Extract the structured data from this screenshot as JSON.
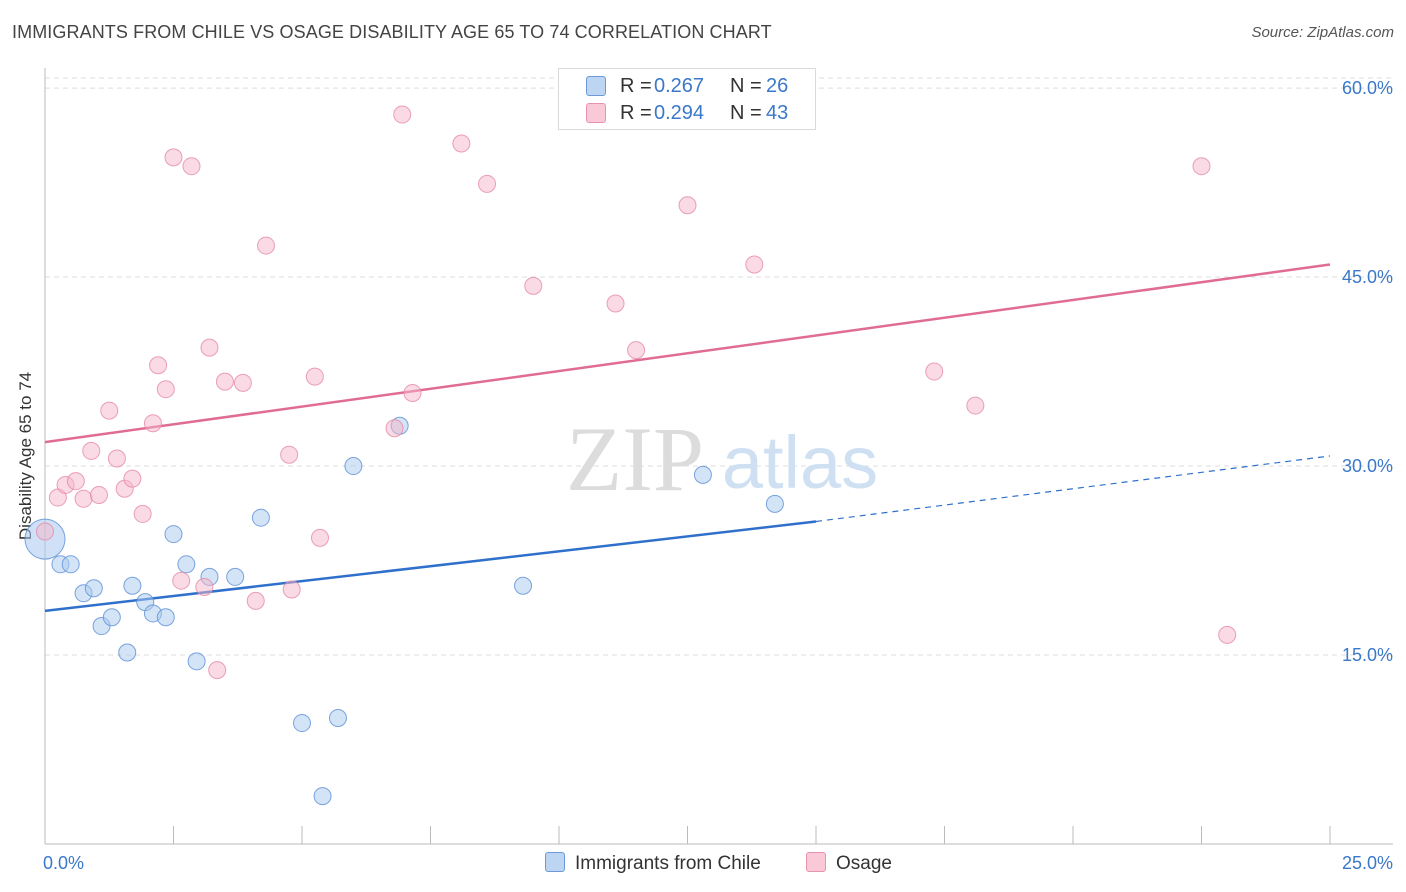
{
  "title": "IMMIGRANTS FROM CHILE VS OSAGE DISABILITY AGE 65 TO 74 CORRELATION CHART",
  "source": "Source: ZipAtlas.com",
  "watermark": {
    "zip": "ZIP",
    "atlas": "atlas"
  },
  "legend_stats": [
    {
      "name": "Immigrants from Chile",
      "r_label": "R =",
      "r": "0.267",
      "n_label": "N =",
      "n": "26"
    },
    {
      "name": "Osage",
      "r_label": "R =",
      "r": "0.294",
      "n_label": "N =",
      "n": "43"
    }
  ],
  "colors": {
    "blue_fill": "#a9c9f0",
    "blue_edge": "#5b8fd6",
    "blue_line": "#2f70cc",
    "pink_fill": "#f6b6ca",
    "pink_edge": "#e58aa7",
    "pink_line": "#e06c94",
    "tick_text": "#3a78c9",
    "grid": "#dddddd",
    "axis": "#bbbbbb"
  },
  "chart_data": {
    "type": "scatter",
    "title": "IMMIGRANTS FROM CHILE VS OSAGE DISABILITY AGE 65 TO 74 CORRELATION CHART",
    "xlabel": "",
    "ylabel": "Disability Age 65 to 74",
    "xlim": [
      0,
      25
    ],
    "ylim": [
      0,
      60.8
    ],
    "x_tick_labels": [
      "0.0%",
      "25.0%"
    ],
    "y_ticks": [
      15,
      30,
      45,
      60
    ],
    "y_tick_labels": [
      "15.0%",
      "30.0%",
      "45.0%",
      "60.0%"
    ],
    "grid": true,
    "series": [
      {
        "name": "Immigrants from Chile",
        "color": "blue",
        "points": [
          {
            "x": 0.0,
            "y": 24.2,
            "big": true
          },
          {
            "x": 0.3,
            "y": 22.2
          },
          {
            "x": 0.5,
            "y": 22.2
          },
          {
            "x": 0.75,
            "y": 19.9
          },
          {
            "x": 0.95,
            "y": 20.3
          },
          {
            "x": 1.1,
            "y": 17.3
          },
          {
            "x": 1.3,
            "y": 18.0
          },
          {
            "x": 1.6,
            "y": 15.2
          },
          {
            "x": 1.7,
            "y": 20.5
          },
          {
            "x": 1.95,
            "y": 19.2
          },
          {
            "x": 2.1,
            "y": 18.3
          },
          {
            "x": 2.35,
            "y": 18.0
          },
          {
            "x": 2.5,
            "y": 24.6
          },
          {
            "x": 2.75,
            "y": 22.2
          },
          {
            "x": 2.95,
            "y": 14.5
          },
          {
            "x": 3.2,
            "y": 21.2
          },
          {
            "x": 3.7,
            "y": 21.2
          },
          {
            "x": 4.2,
            "y": 25.9
          },
          {
            "x": 5.0,
            "y": 9.6
          },
          {
            "x": 5.4,
            "y": 3.8
          },
          {
            "x": 5.7,
            "y": 10.0
          },
          {
            "x": 6.0,
            "y": 30.0
          },
          {
            "x": 6.9,
            "y": 33.2
          },
          {
            "x": 9.3,
            "y": 20.5
          },
          {
            "x": 12.8,
            "y": 29.3
          },
          {
            "x": 14.2,
            "y": 27.0
          }
        ],
        "trend": {
          "x0": 0,
          "y0": 18.5,
          "x1": 15,
          "y1": 25.6,
          "dashed_to": 25,
          "dashed_y1": 30.8
        }
      },
      {
        "name": "Osage",
        "color": "pink",
        "points": [
          {
            "x": 0.0,
            "y": 24.8
          },
          {
            "x": 0.25,
            "y": 27.5
          },
          {
            "x": 0.4,
            "y": 28.5
          },
          {
            "x": 0.6,
            "y": 28.8
          },
          {
            "x": 0.75,
            "y": 27.4
          },
          {
            "x": 0.9,
            "y": 31.2
          },
          {
            "x": 1.05,
            "y": 27.7
          },
          {
            "x": 1.25,
            "y": 34.4
          },
          {
            "x": 1.4,
            "y": 30.6
          },
          {
            "x": 1.55,
            "y": 28.2
          },
          {
            "x": 1.7,
            "y": 29.0
          },
          {
            "x": 1.9,
            "y": 26.2
          },
          {
            "x": 2.1,
            "y": 33.4
          },
          {
            "x": 2.2,
            "y": 38.0
          },
          {
            "x": 2.35,
            "y": 36.1
          },
          {
            "x": 2.5,
            "y": 54.5
          },
          {
            "x": 2.65,
            "y": 20.9
          },
          {
            "x": 2.85,
            "y": 53.8
          },
          {
            "x": 3.1,
            "y": 20.4
          },
          {
            "x": 3.2,
            "y": 39.4
          },
          {
            "x": 3.35,
            "y": 13.8
          },
          {
            "x": 3.5,
            "y": 36.7
          },
          {
            "x": 3.85,
            "y": 36.6
          },
          {
            "x": 4.1,
            "y": 19.3
          },
          {
            "x": 4.3,
            "y": 47.5
          },
          {
            "x": 4.75,
            "y": 30.9
          },
          {
            "x": 4.8,
            "y": 20.2
          },
          {
            "x": 5.25,
            "y": 37.1
          },
          {
            "x": 5.35,
            "y": 24.3
          },
          {
            "x": 6.8,
            "y": 33.0
          },
          {
            "x": 6.95,
            "y": 57.9
          },
          {
            "x": 7.15,
            "y": 35.8
          },
          {
            "x": 8.1,
            "y": 55.6
          },
          {
            "x": 8.6,
            "y": 52.4
          },
          {
            "x": 9.5,
            "y": 44.3
          },
          {
            "x": 11.1,
            "y": 42.9
          },
          {
            "x": 11.5,
            "y": 39.2
          },
          {
            "x": 12.5,
            "y": 50.7
          },
          {
            "x": 13.8,
            "y": 46.0
          },
          {
            "x": 17.3,
            "y": 37.5
          },
          {
            "x": 18.1,
            "y": 34.8
          },
          {
            "x": 22.5,
            "y": 53.8
          },
          {
            "x": 23.0,
            "y": 16.6
          }
        ],
        "trend": {
          "x0": 0,
          "y0": 31.9,
          "x1": 25,
          "y1": 46.0
        }
      }
    ]
  }
}
